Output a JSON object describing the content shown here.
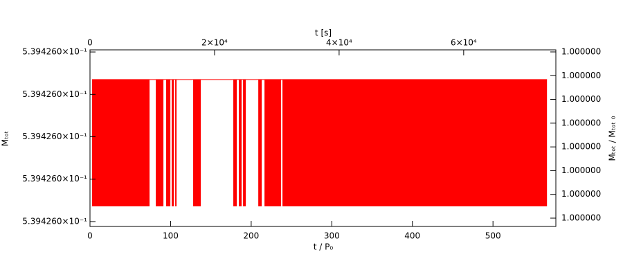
{
  "chart_data": {
    "type": "range",
    "x_label": "t / P₀",
    "x2_label": "t [s]",
    "y_label": "Mₜₒₜ",
    "y2_label": "Mₜₒₜ / Mₜₒₜ ₀",
    "intervals": [
      [
        2.6,
        73.9
      ],
      [
        81.6,
        91.1
      ],
      [
        94.5,
        99.7
      ],
      [
        101.4,
        104
      ],
      [
        105.7,
        107.4
      ],
      [
        128,
        137.5
      ],
      [
        177.8,
        182.1
      ],
      [
        184.7,
        188.1
      ],
      [
        189.9,
        193.3
      ],
      [
        208.8,
        213.1
      ],
      [
        216.5,
        237.1
      ],
      [
        238.8,
        567
      ]
    ],
    "high": 0.539426000135,
    "low": 0.539425999836,
    "color": "#ff0000",
    "xlim": [
      0,
      578
    ],
    "xticks": [
      0,
      100,
      200,
      300,
      400,
      500
    ],
    "x2lim": [
      0,
      74800
    ],
    "x2ticks": [
      0,
      {
        "value": 20000,
        "label": "2×10⁴"
      },
      {
        "value": 40000,
        "label": "4×10⁴"
      },
      {
        "value": 60000,
        "label": "6×10⁴"
      }
    ],
    "ylim": [
      0.5394259997885,
      0.539426000205
    ],
    "yticks": [
      {
        "value": 0.5394259998,
        "label": "5.394260×10⁻¹"
      },
      {
        "value": 0.5394259999,
        "label": "5.394260×10⁻¹"
      },
      {
        "value": 0.539426,
        "label": "5.394260×10⁻¹"
      },
      {
        "value": 0.5394260001,
        "label": "5.394260×10⁻¹"
      },
      {
        "value": 0.5394260002,
        "label": "5.394260×10⁻¹"
      }
    ],
    "y2lim": [
      0.999999999665,
      1.0000000004087
    ],
    "y2ticks": [
      {
        "value": 0.9999999997,
        "label": "1.000000"
      },
      {
        "value": 0.9999999998,
        "label": "1.000000"
      },
      {
        "value": 0.9999999999,
        "label": "1.000000"
      },
      {
        "value": 1.0,
        "label": "1.000000"
      },
      {
        "value": 1.0000000001,
        "label": "1.000000"
      },
      {
        "value": 1.0000000002,
        "label": "1.000000"
      },
      {
        "value": 1.0000000003,
        "label": "1.000000"
      },
      {
        "value": 1.0000000004,
        "label": "1.000000"
      }
    ]
  }
}
